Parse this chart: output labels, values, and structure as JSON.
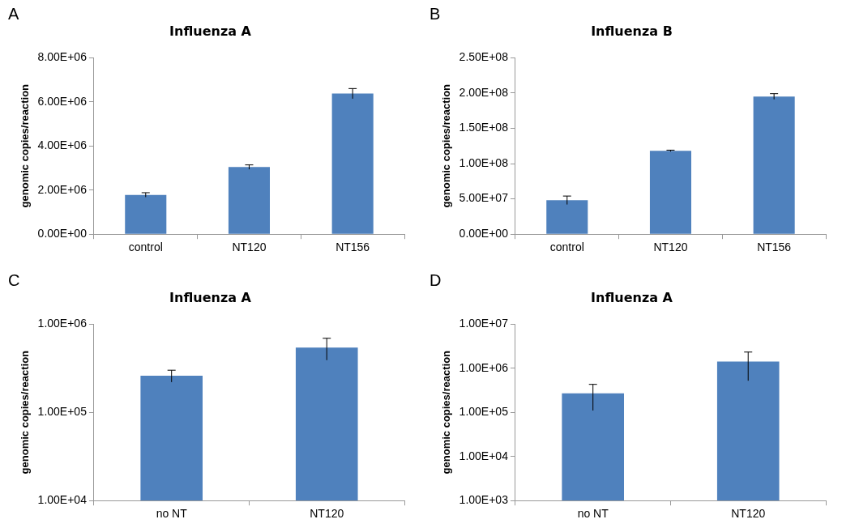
{
  "chart_data": [
    {
      "type": "bar",
      "title": "Influenza A",
      "ylabel": "genomic copies/reaction",
      "annotations": [
        "A"
      ],
      "categories": [
        "control",
        "NT120",
        "NT156"
      ],
      "values": [
        1780000,
        3040000,
        6370000
      ],
      "errors": [
        100000,
        100000,
        230000
      ],
      "color": "#4f81bd",
      "ylim": [
        0,
        8000000
      ],
      "yticks": [
        {
          "value": 0,
          "label": "0.00E+00"
        },
        {
          "value": 2000000,
          "label": "2.00E+06"
        },
        {
          "value": 4000000,
          "label": "4.00E+06"
        },
        {
          "value": 6000000,
          "label": "6.00E+06"
        },
        {
          "value": 8000000,
          "label": "8.00E+06"
        }
      ],
      "grid": false
    },
    {
      "type": "bar",
      "title": "Influenza B",
      "ylabel": "genomic copies/reaction",
      "annotations": [
        "B"
      ],
      "categories": [
        "control",
        "NT120",
        "NT156"
      ],
      "values": [
        48000000,
        118000000,
        195000000
      ],
      "errors": [
        6000000,
        1000000,
        4000000
      ],
      "color": "#4f81bd",
      "ylim": [
        0,
        250000000
      ],
      "yticks": [
        {
          "value": 0,
          "label": "0.00E+00"
        },
        {
          "value": 50000000,
          "label": "5.00E+07"
        },
        {
          "value": 100000000,
          "label": "1.00E+08"
        },
        {
          "value": 150000000,
          "label": "1.50E+08"
        },
        {
          "value": 200000000,
          "label": "2.00E+08"
        },
        {
          "value": 250000000,
          "label": "2.50E+08"
        }
      ],
      "grid": false
    },
    {
      "type": "bar",
      "title": "Influenza A",
      "ylabel": "genomic copies/reaction",
      "annotations": [
        "C"
      ],
      "categories": [
        "no NT",
        "NT120"
      ],
      "values": [
        260000,
        540000
      ],
      "errors": [
        40000,
        150000
      ],
      "color": "#4f81bd",
      "log": true,
      "ylim": [
        10000,
        1000000
      ],
      "yticks": [
        {
          "value": 10000,
          "label": "1.00E+04"
        },
        {
          "value": 100000,
          "label": "1.00E+05"
        },
        {
          "value": 1000000,
          "label": "1.00E+06"
        }
      ],
      "grid": false
    },
    {
      "type": "bar",
      "title": "Influenza A",
      "ylabel": "genomic copies/reaction",
      "annotations": [
        "D"
      ],
      "categories": [
        "no NT",
        "NT120"
      ],
      "values": [
        270000,
        1420000
      ],
      "errors": [
        160000,
        900000
      ],
      "color": "#4f81bd",
      "log": true,
      "ylim": [
        1000,
        10000000
      ],
      "yticks": [
        {
          "value": 1000,
          "label": "1.00E+03"
        },
        {
          "value": 10000,
          "label": "1.00E+04"
        },
        {
          "value": 100000,
          "label": "1.00E+05"
        },
        {
          "value": 1000000,
          "label": "1.00E+06"
        },
        {
          "value": 10000000,
          "label": "1.00E+07"
        }
      ],
      "grid": false
    }
  ]
}
